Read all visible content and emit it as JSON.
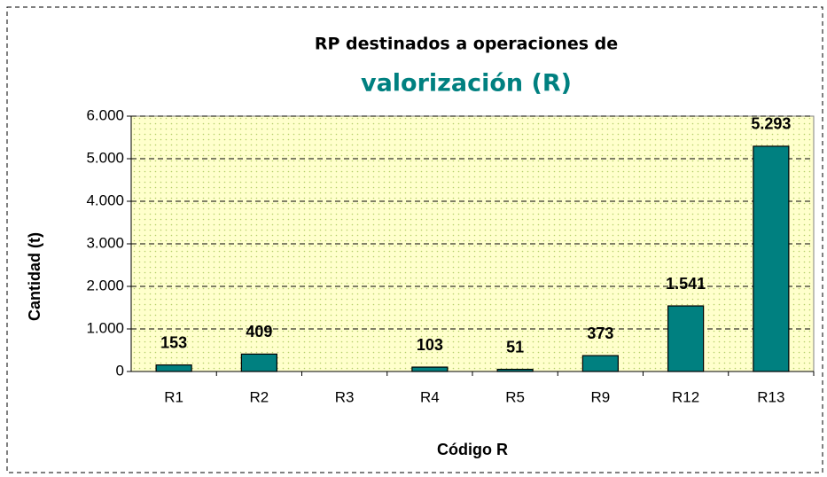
{
  "chart_data": {
    "type": "bar",
    "title": "RP destinados a operaciones de",
    "subtitle": "valorización (R)",
    "x_label": "Código R",
    "y_label": "Cantidad (t)",
    "categories": [
      "R1",
      "R2",
      "R3",
      "R4",
      "R5",
      "R9",
      "R12",
      "R13"
    ],
    "values": [
      153,
      409,
      null,
      103,
      51,
      373,
      1541,
      5293
    ],
    "value_labels": [
      "153",
      "409",
      null,
      "103",
      "51",
      "373",
      "1.541",
      "5.293"
    ],
    "color": "#008080",
    "ylim": [
      0,
      6000
    ],
    "yticks": [
      0,
      {
        "value": 1000,
        "label": "1.000"
      },
      {
        "value": 2000,
        "label": "2.000"
      },
      {
        "value": 3000,
        "label": "3.000"
      },
      {
        "value": 4000,
        "label": "4.000"
      },
      {
        "value": 5000,
        "label": "5.000"
      },
      {
        "value": 6000,
        "label": "6.000"
      }
    ],
    "grid": true
  }
}
